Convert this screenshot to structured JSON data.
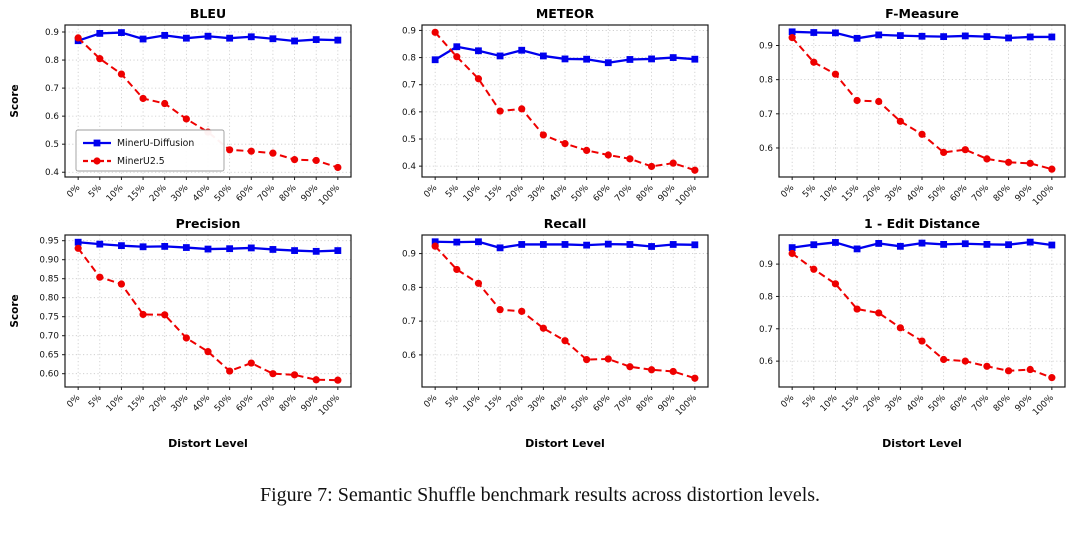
{
  "caption": "Figure 7: Semantic Shuffle benchmark results across distortion levels.",
  "legend": {
    "position": "lower-left of BLEU subplot",
    "items": [
      {
        "label": "MinerU-Diffusion",
        "color": "#0000ee",
        "marker": "square",
        "line": "solid"
      },
      {
        "label": "MinerU2.5",
        "color": "#ee0000",
        "marker": "circle",
        "line": "dashed"
      }
    ]
  },
  "chart_data": [
    {
      "type": "line",
      "id": "bleu",
      "title": "BLEU",
      "xlabel": "",
      "ylabel": "Score",
      "grid": true,
      "legend_visible": true,
      "categories": [
        "0%",
        "5%",
        "10%",
        "15%",
        "20%",
        "30%",
        "40%",
        "50%",
        "60%",
        "70%",
        "80%",
        "90%",
        "100%"
      ],
      "yticks": [
        "0.4",
        "0.5",
        "0.6",
        "0.7",
        "0.8",
        "0.9"
      ],
      "ylim": [
        0.383,
        0.925
      ],
      "series": [
        {
          "name": "MinerU-Diffusion",
          "color": "#0000ee",
          "marker": "square",
          "dash": "solid",
          "values": [
            0.869,
            0.895,
            0.898,
            0.875,
            0.888,
            0.878,
            0.885,
            0.878,
            0.883,
            0.876,
            0.868,
            0.873,
            0.871
          ]
        },
        {
          "name": "MinerU2.5",
          "color": "#ee0000",
          "marker": "circle",
          "dash": "dashed",
          "values": [
            0.879,
            0.805,
            0.75,
            0.663,
            0.645,
            0.59,
            0.543,
            0.48,
            0.475,
            0.468,
            0.445,
            0.442,
            0.417
          ]
        }
      ]
    },
    {
      "type": "line",
      "id": "meteor",
      "title": "METEOR",
      "xlabel": "",
      "ylabel": "",
      "grid": true,
      "legend_visible": false,
      "categories": [
        "0%",
        "5%",
        "10%",
        "15%",
        "20%",
        "30%",
        "40%",
        "50%",
        "60%",
        "70%",
        "80%",
        "90%",
        "100%"
      ],
      "yticks": [
        "0.4",
        "0.5",
        "0.6",
        "0.7",
        "0.8",
        "0.9"
      ],
      "ylim": [
        0.36,
        0.92
      ],
      "series": [
        {
          "name": "MinerU-Diffusion",
          "color": "#0000ee",
          "marker": "square",
          "dash": "solid",
          "values": [
            0.792,
            0.84,
            0.825,
            0.806,
            0.827,
            0.806,
            0.795,
            0.794,
            0.781,
            0.793,
            0.795,
            0.8,
            0.794
          ]
        },
        {
          "name": "MinerU2.5",
          "color": "#ee0000",
          "marker": "circle",
          "dash": "dashed",
          "values": [
            0.893,
            0.803,
            0.722,
            0.603,
            0.611,
            0.515,
            0.483,
            0.458,
            0.441,
            0.427,
            0.399,
            0.411,
            0.385
          ]
        }
      ]
    },
    {
      "type": "line",
      "id": "f-measure",
      "title": "F-Measure",
      "xlabel": "",
      "ylabel": "",
      "grid": true,
      "legend_visible": false,
      "categories": [
        "0%",
        "5%",
        "10%",
        "15%",
        "20%",
        "30%",
        "40%",
        "50%",
        "60%",
        "70%",
        "80%",
        "90%",
        "100%"
      ],
      "yticks": [
        "0.6",
        "0.7",
        "0.8",
        "0.9"
      ],
      "ylim": [
        0.515,
        0.96
      ],
      "series": [
        {
          "name": "MinerU-Diffusion",
          "color": "#0000ee",
          "marker": "square",
          "dash": "solid",
          "values": [
            0.94,
            0.938,
            0.937,
            0.921,
            0.931,
            0.929,
            0.927,
            0.926,
            0.928,
            0.926,
            0.922,
            0.925,
            0.925
          ]
        },
        {
          "name": "MinerU2.5",
          "color": "#ee0000",
          "marker": "circle",
          "dash": "dashed",
          "values": [
            0.923,
            0.851,
            0.816,
            0.739,
            0.736,
            0.678,
            0.64,
            0.587,
            0.595,
            0.568,
            0.558,
            0.555,
            0.538
          ]
        }
      ]
    },
    {
      "type": "line",
      "id": "precision",
      "title": "Precision",
      "xlabel": "Distort Level",
      "ylabel": "Score",
      "grid": true,
      "legend_visible": false,
      "categories": [
        "0%",
        "5%",
        "10%",
        "15%",
        "20%",
        "30%",
        "40%",
        "50%",
        "60%",
        "70%",
        "80%",
        "90%",
        "100%"
      ],
      "yticks": [
        "0.60",
        "0.65",
        "0.70",
        "0.75",
        "0.80",
        "0.85",
        "0.90",
        "0.95"
      ],
      "ylim": [
        0.565,
        0.965
      ],
      "series": [
        {
          "name": "MinerU-Diffusion",
          "color": "#0000ee",
          "marker": "square",
          "dash": "solid",
          "values": [
            0.946,
            0.941,
            0.937,
            0.934,
            0.935,
            0.932,
            0.928,
            0.929,
            0.931,
            0.927,
            0.924,
            0.922,
            0.924
          ]
        },
        {
          "name": "MinerU2.5",
          "color": "#ee0000",
          "marker": "circle",
          "dash": "dashed",
          "values": [
            0.93,
            0.854,
            0.836,
            0.756,
            0.755,
            0.694,
            0.658,
            0.607,
            0.628,
            0.6,
            0.597,
            0.584,
            0.583
          ]
        }
      ]
    },
    {
      "type": "line",
      "id": "recall",
      "title": "Recall",
      "xlabel": "Distort Level",
      "ylabel": "",
      "grid": true,
      "legend_visible": false,
      "categories": [
        "0%",
        "5%",
        "10%",
        "15%",
        "20%",
        "30%",
        "40%",
        "50%",
        "60%",
        "70%",
        "80%",
        "90%",
        "100%"
      ],
      "yticks": [
        "0.6",
        "0.7",
        "0.8",
        "0.9"
      ],
      "ylim": [
        0.505,
        0.955
      ],
      "series": [
        {
          "name": "MinerU-Diffusion",
          "color": "#0000ee",
          "marker": "square",
          "dash": "solid",
          "values": [
            0.935,
            0.934,
            0.935,
            0.917,
            0.927,
            0.927,
            0.927,
            0.925,
            0.928,
            0.927,
            0.921,
            0.927,
            0.926
          ]
        },
        {
          "name": "MinerU2.5",
          "color": "#ee0000",
          "marker": "circle",
          "dash": "dashed",
          "values": [
            0.922,
            0.853,
            0.812,
            0.734,
            0.729,
            0.679,
            0.642,
            0.586,
            0.588,
            0.565,
            0.556,
            0.551,
            0.531
          ]
        }
      ]
    },
    {
      "type": "line",
      "id": "edit-distance",
      "title": "1 - Edit Distance",
      "xlabel": "Distort Level",
      "ylabel": "",
      "grid": true,
      "legend_visible": false,
      "categories": [
        "0%",
        "5%",
        "10%",
        "15%",
        "20%",
        "30%",
        "40%",
        "50%",
        "60%",
        "70%",
        "80%",
        "90%",
        "100%"
      ],
      "yticks": [
        "0.6",
        "0.7",
        "0.8",
        "0.9"
      ],
      "ylim": [
        0.52,
        0.99
      ],
      "series": [
        {
          "name": "MinerU-Diffusion",
          "color": "#0000ee",
          "marker": "square",
          "dash": "solid",
          "values": [
            0.951,
            0.96,
            0.967,
            0.947,
            0.964,
            0.955,
            0.965,
            0.961,
            0.963,
            0.961,
            0.96,
            0.968,
            0.959
          ]
        },
        {
          "name": "MinerU2.5",
          "color": "#ee0000",
          "marker": "circle",
          "dash": "dashed",
          "values": [
            0.933,
            0.884,
            0.839,
            0.761,
            0.749,
            0.703,
            0.662,
            0.605,
            0.6,
            0.584,
            0.57,
            0.574,
            0.549
          ]
        }
      ]
    }
  ]
}
